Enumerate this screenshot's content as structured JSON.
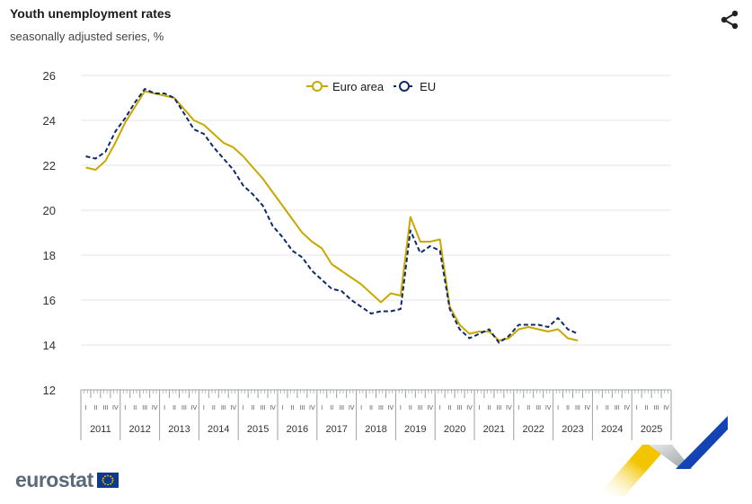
{
  "header": {
    "title": "Youth unemployment rates",
    "subtitle": "seasonally adjusted series, %"
  },
  "share_icon": "share-icon",
  "logo": {
    "text": "eurostat",
    "flag_icon": "eu-flag-icon"
  },
  "colors": {
    "euro_area": "#c9a800",
    "eu": "#0e2a6b",
    "grid": "#e3e6ea",
    "axis": "#9aa0a6"
  },
  "chart_data": {
    "type": "line",
    "title": "Youth unemployment rates",
    "subtitle": "seasonally adjusted series, %",
    "xlabel": "",
    "ylabel": "",
    "ylim": [
      12,
      26
    ],
    "yticks": [
      "12",
      "14",
      "16",
      "18",
      "20",
      "22",
      "24",
      "26"
    ],
    "years": [
      "2011",
      "2012",
      "2013",
      "2014",
      "2015",
      "2016",
      "2017",
      "2018",
      "2019",
      "2020",
      "2021",
      "2022",
      "2023",
      "2024",
      "2025"
    ],
    "quarter_labels": [
      "I",
      "II",
      "III",
      "IV"
    ],
    "x_frequency": "quarterly",
    "x_start": "2011-Q1",
    "grid": true,
    "legend_position": "top-center",
    "series": [
      {
        "name": "Euro area",
        "style": "solid",
        "color": "#c9a800",
        "values": [
          21.9,
          21.8,
          22.2,
          23.0,
          23.9,
          24.6,
          25.3,
          25.2,
          25.1,
          25.0,
          24.5,
          24.0,
          23.8,
          23.4,
          23.0,
          22.8,
          22.4,
          21.9,
          21.4,
          20.8,
          20.2,
          19.6,
          19.0,
          18.6,
          18.3,
          17.6,
          17.3,
          17.0,
          16.7,
          16.3,
          15.9,
          16.3,
          16.2,
          19.7,
          18.6,
          18.6,
          18.7,
          15.7,
          14.9,
          14.5,
          14.6,
          14.6,
          14.2,
          14.3,
          14.7,
          14.8,
          14.7,
          14.6,
          14.7,
          14.3,
          14.2
        ]
      },
      {
        "name": "EU",
        "style": "dashed",
        "color": "#0e2a6b",
        "values": [
          22.4,
          22.3,
          22.6,
          23.5,
          24.1,
          24.8,
          25.4,
          25.2,
          25.2,
          25.0,
          24.3,
          23.6,
          23.4,
          22.8,
          22.3,
          21.8,
          21.1,
          20.7,
          20.2,
          19.3,
          18.8,
          18.2,
          17.9,
          17.3,
          16.9,
          16.5,
          16.4,
          16.0,
          15.7,
          15.4,
          15.5,
          15.5,
          15.6,
          19.1,
          18.1,
          18.4,
          18.2,
          15.6,
          14.7,
          14.3,
          14.5,
          14.7,
          14.1,
          14.4,
          14.9,
          14.9,
          14.9,
          14.8,
          15.2,
          14.7,
          14.5
        ]
      }
    ]
  }
}
